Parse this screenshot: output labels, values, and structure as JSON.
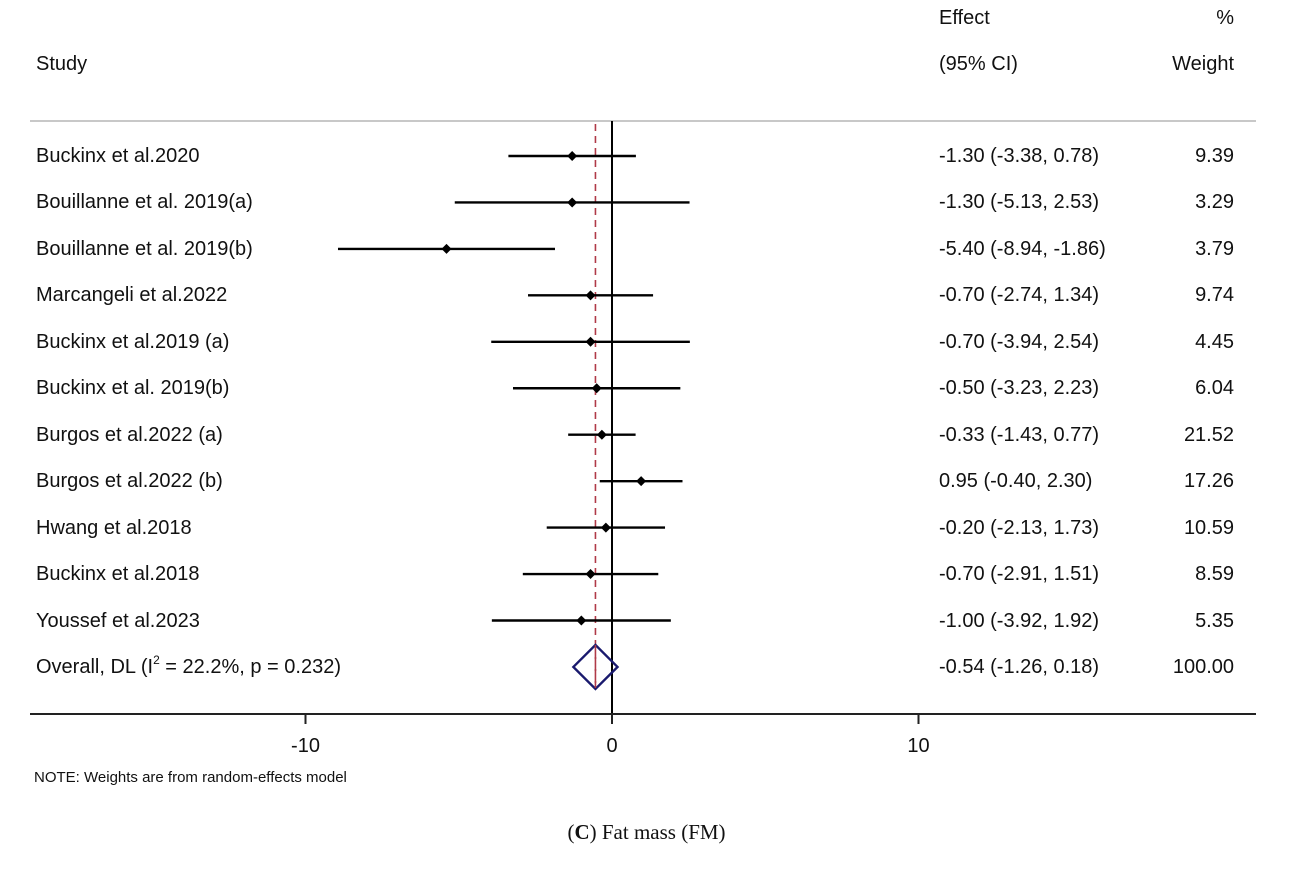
{
  "chart_data": {
    "type": "forest",
    "headers": {
      "study": "Study",
      "effect_line1": "Effect",
      "effect_line2": "(95% CI)",
      "weight_line1": "%",
      "weight_line2": "Weight"
    },
    "studies": [
      {
        "name": "Buckinx et al.2020",
        "effect": -1.3,
        "lower": -3.38,
        "upper": 0.78,
        "ci_text": "-1.30 (-3.38, 0.78)",
        "weight": "9.39"
      },
      {
        "name": "Bouillanne et al. 2019(a)",
        "effect": -1.3,
        "lower": -5.13,
        "upper": 2.53,
        "ci_text": "-1.30 (-5.13, 2.53)",
        "weight": "3.29"
      },
      {
        "name": "Bouillanne et al. 2019(b)",
        "effect": -5.4,
        "lower": -8.94,
        "upper": -1.86,
        "ci_text": "-5.40 (-8.94, -1.86)",
        "weight": "3.79"
      },
      {
        "name": "Marcangeli et al.2022",
        "effect": -0.7,
        "lower": -2.74,
        "upper": 1.34,
        "ci_text": "-0.70 (-2.74, 1.34)",
        "weight": "9.74"
      },
      {
        "name": "Buckinx et al.2019 (a)",
        "effect": -0.7,
        "lower": -3.94,
        "upper": 2.54,
        "ci_text": "-0.70 (-3.94, 2.54)",
        "weight": "4.45"
      },
      {
        "name": "Buckinx et al. 2019(b)",
        "effect": -0.5,
        "lower": -3.23,
        "upper": 2.23,
        "ci_text": "-0.50 (-3.23, 2.23)",
        "weight": "6.04"
      },
      {
        "name": "Burgos et al.2022 (a)",
        "effect": -0.33,
        "lower": -1.43,
        "upper": 0.77,
        "ci_text": "-0.33 (-1.43, 0.77)",
        "weight": "21.52"
      },
      {
        "name": "Burgos et al.2022 (b)",
        "effect": 0.95,
        "lower": -0.4,
        "upper": 2.3,
        "ci_text": "0.95 (-0.40, 2.30)",
        "weight": "17.26"
      },
      {
        "name": "Hwang et al.2018",
        "effect": -0.2,
        "lower": -2.13,
        "upper": 1.73,
        "ci_text": "-0.20 (-2.13, 1.73)",
        "weight": "10.59"
      },
      {
        "name": "Buckinx et al.2018",
        "effect": -0.7,
        "lower": -2.91,
        "upper": 1.51,
        "ci_text": "-0.70 (-2.91, 1.51)",
        "weight": "8.59"
      },
      {
        "name": "Youssef et al.2023",
        "effect": -1.0,
        "lower": -3.92,
        "upper": 1.92,
        "ci_text": "-1.00 (-3.92, 1.92)",
        "weight": "5.35"
      }
    ],
    "overall": {
      "label_prefix": "Overall, DL (I",
      "label_sup": "2",
      "label_suffix": " = 22.2%, p = 0.232)",
      "effect": -0.54,
      "lower": -1.26,
      "upper": 0.18,
      "ci_text": "-0.54 (-1.26, 0.18)",
      "weight": "100.00"
    },
    "x_ticks": [
      -10,
      0,
      10
    ],
    "x_tick_labels": [
      "-10",
      "0",
      "10"
    ],
    "xlim": [
      -19,
      21
    ],
    "note": "NOTE: Weights are from random-effects model",
    "caption_prefix": "(",
    "caption_letter": "C",
    "caption_suffix": ") Fat mass (FM)",
    "colors": {
      "ci_line": "#000000",
      "point": "#000000",
      "overall_diamond": "#1a1a6e",
      "overall_dashed_line": "#b03a48",
      "top_rule": "#c8c8c8"
    }
  }
}
